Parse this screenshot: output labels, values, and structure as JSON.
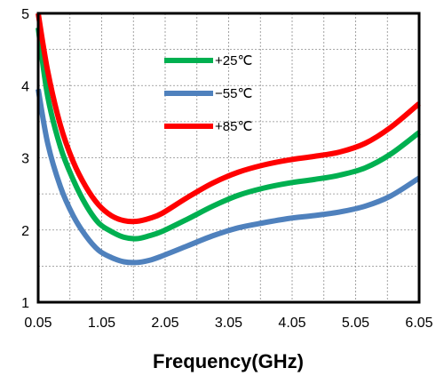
{
  "chart_data": {
    "type": "line",
    "title": "",
    "xlabel": "Frequency(GHz)",
    "ylabel": "",
    "xlim": [
      0.05,
      6.05
    ],
    "ylim": [
      1,
      5
    ],
    "x_ticks": [
      "0.05",
      "1.05",
      "2.05",
      "3.05",
      "4.05",
      "5.05",
      "6.05"
    ],
    "y_ticks": [
      "1",
      "2",
      "3",
      "4",
      "5"
    ],
    "grid": true,
    "legend_position": "top-center",
    "series": [
      {
        "name": "+25℃",
        "color": "#00b050",
        "x": [
          0.05,
          0.2,
          0.4,
          0.6,
          0.8,
          1.0,
          1.2,
          1.4,
          1.6,
          1.8,
          2.0,
          2.4,
          2.8,
          3.2,
          3.6,
          4.0,
          4.4,
          4.8,
          5.2,
          5.6,
          6.05
        ],
        "y": [
          4.8,
          3.85,
          3.15,
          2.7,
          2.35,
          2.1,
          1.98,
          1.9,
          1.88,
          1.92,
          1.98,
          2.15,
          2.33,
          2.48,
          2.58,
          2.65,
          2.7,
          2.76,
          2.86,
          3.05,
          3.35
        ]
      },
      {
        "name": "−55℃",
        "color": "#4f81bd",
        "x": [
          0.05,
          0.2,
          0.4,
          0.6,
          0.8,
          1.0,
          1.2,
          1.4,
          1.6,
          1.8,
          2.0,
          2.4,
          2.8,
          3.2,
          3.6,
          4.0,
          4.4,
          4.8,
          5.2,
          5.6,
          6.05
        ],
        "y": [
          3.95,
          3.2,
          2.6,
          2.2,
          1.92,
          1.72,
          1.62,
          1.56,
          1.55,
          1.58,
          1.64,
          1.78,
          1.92,
          2.03,
          2.1,
          2.16,
          2.2,
          2.25,
          2.33,
          2.47,
          2.72
        ]
      },
      {
        "name": "+85℃",
        "color": "#ff0000",
        "x": [
          0.05,
          0.2,
          0.4,
          0.6,
          0.8,
          1.0,
          1.2,
          1.4,
          1.6,
          1.8,
          2.0,
          2.4,
          2.8,
          3.2,
          3.6,
          4.0,
          4.4,
          4.8,
          5.2,
          5.6,
          6.05
        ],
        "y": [
          5.0,
          4.2,
          3.45,
          2.95,
          2.6,
          2.35,
          2.2,
          2.13,
          2.12,
          2.16,
          2.23,
          2.45,
          2.65,
          2.8,
          2.9,
          2.97,
          3.02,
          3.08,
          3.2,
          3.42,
          3.75
        ]
      }
    ]
  }
}
